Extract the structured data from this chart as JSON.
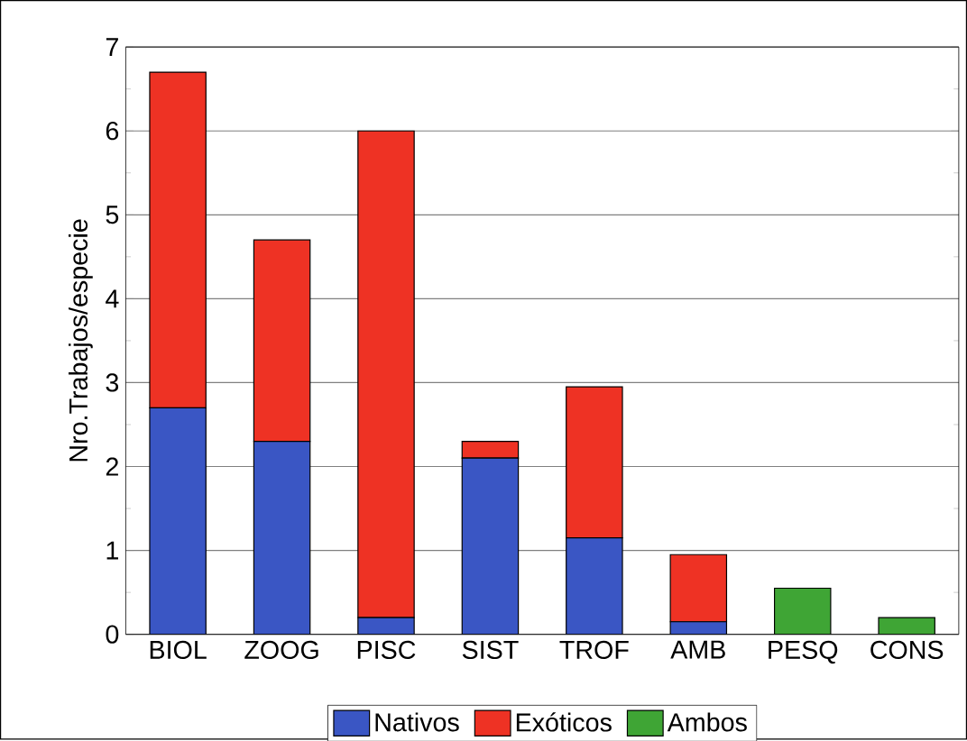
{
  "chart_data": {
    "type": "bar",
    "stacked": true,
    "ylabel": "Nro.Trabajos/especie",
    "categories": [
      "BIOL",
      "ZOOG",
      "PISC",
      "SIST",
      "TROF",
      "AMB",
      "PESQ",
      "CONS"
    ],
    "series": [
      {
        "name": "Nativos",
        "color": "#3a56c4",
        "values": [
          2.7,
          2.3,
          0.2,
          2.1,
          1.15,
          0.15,
          0,
          0
        ]
      },
      {
        "name": "Exóticos",
        "color": "#ee3224",
        "values": [
          4.0,
          2.4,
          5.8,
          0.2,
          1.8,
          0.8,
          0,
          0
        ]
      },
      {
        "name": "Ambos",
        "color": "#3fa535",
        "values": [
          0,
          0,
          0,
          0,
          0,
          0,
          0.55,
          0.2
        ]
      }
    ],
    "ylim": [
      0,
      7
    ],
    "yticks": [
      0,
      1,
      2,
      3,
      4,
      5,
      6,
      7
    ],
    "grid": "y",
    "legend": "bottom"
  }
}
